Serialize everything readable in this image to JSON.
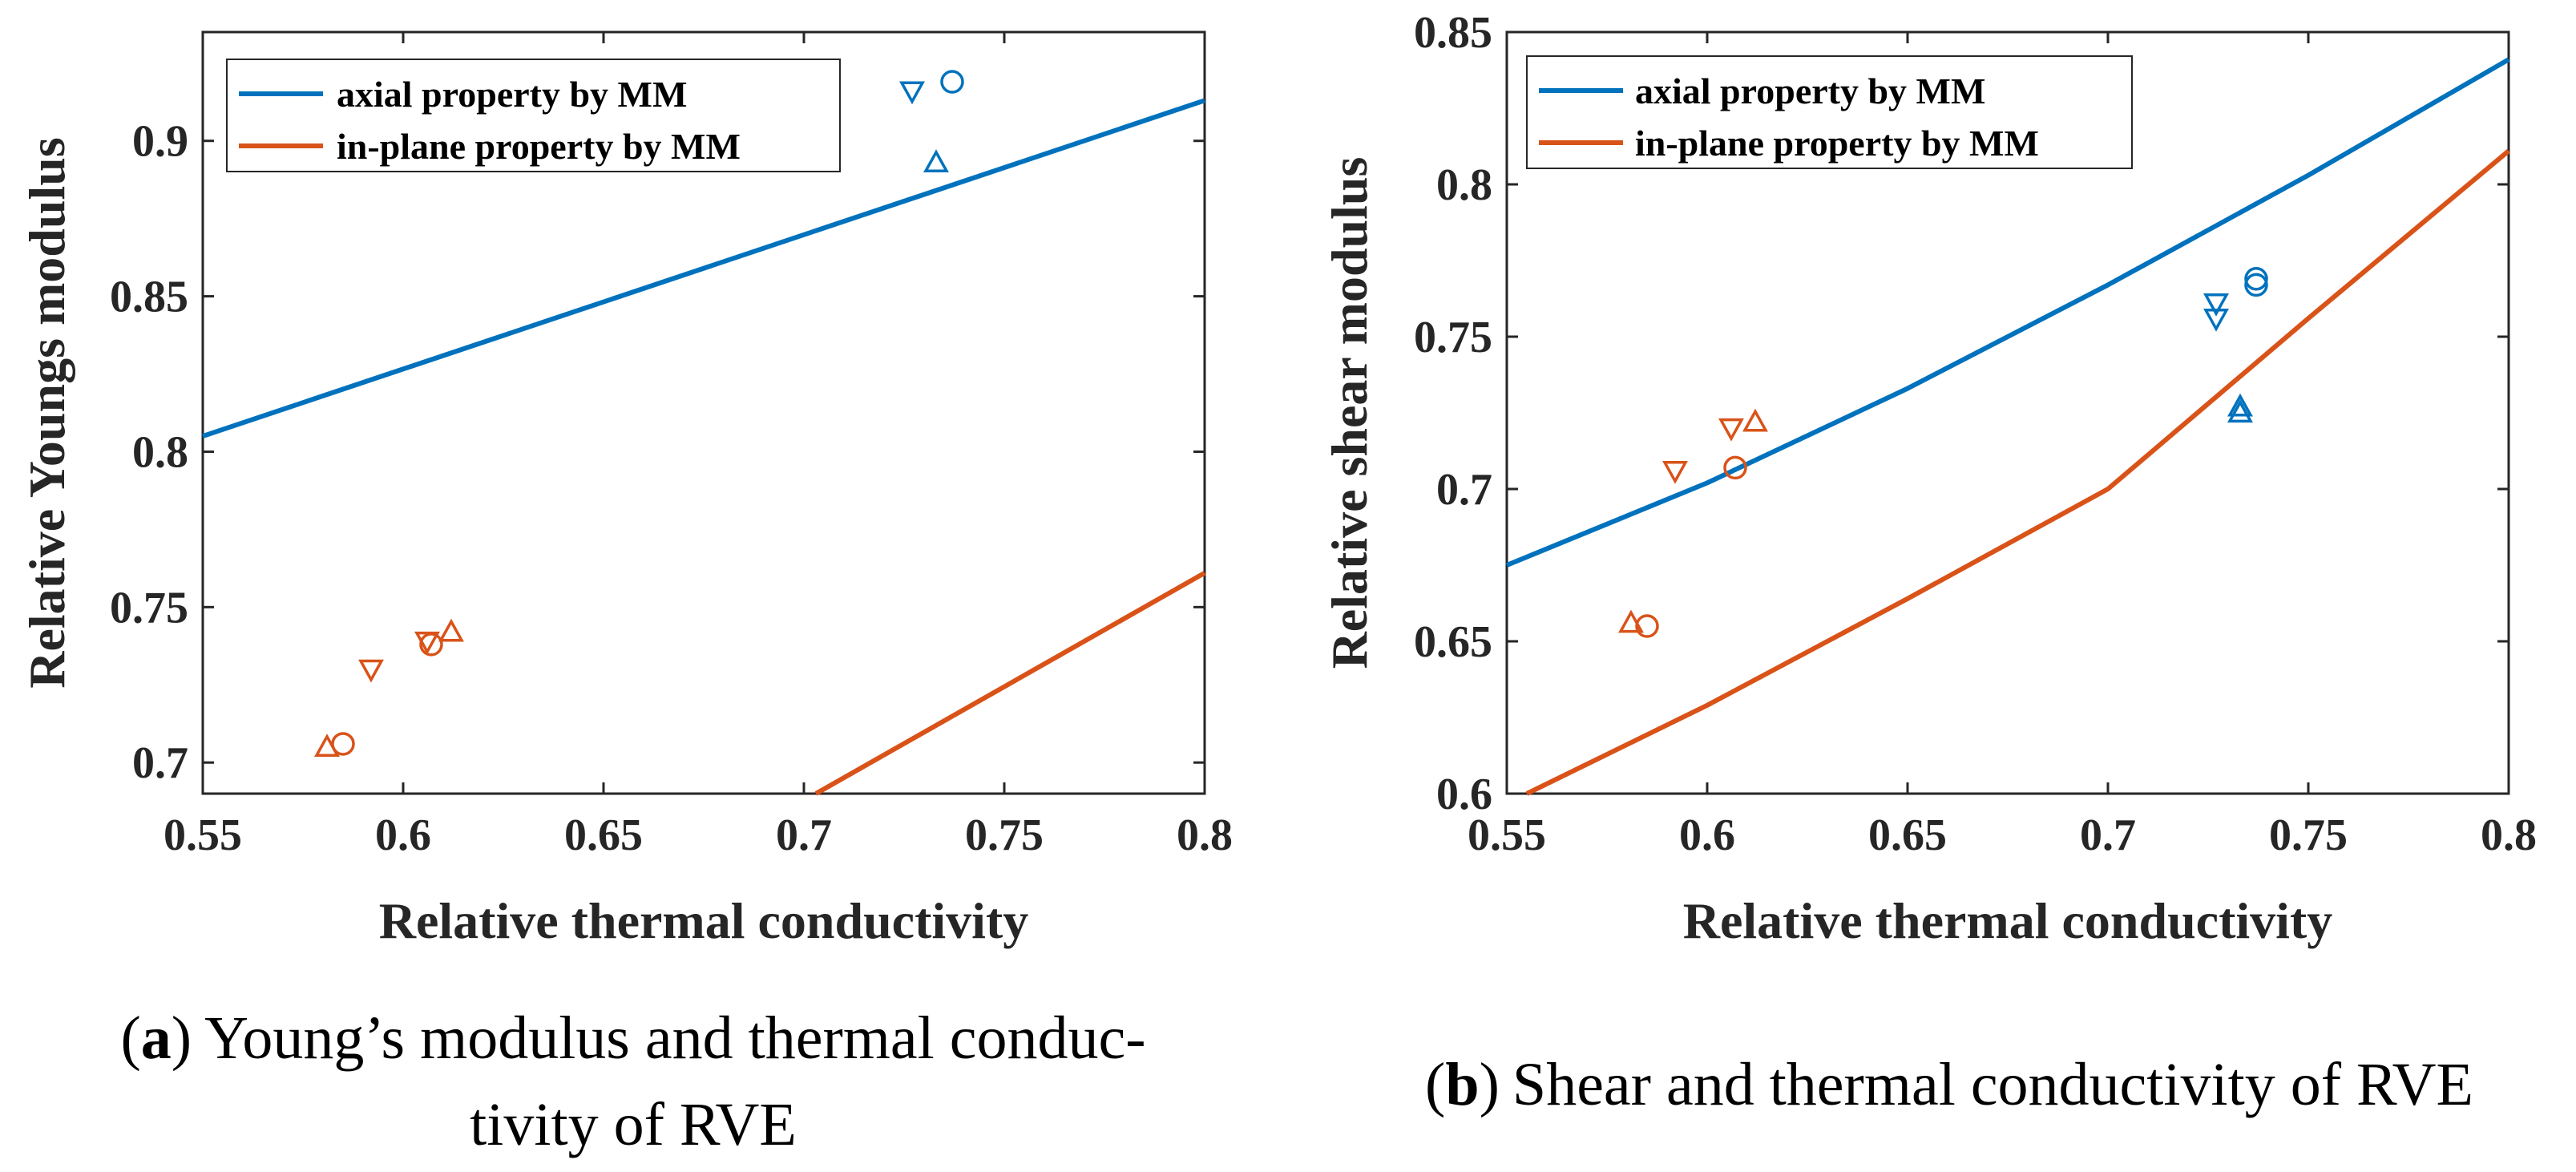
{
  "colors": {
    "axial": "#0072BD",
    "inplane": "#D95319",
    "axis": "#262626",
    "background": "#ffffff"
  },
  "chart_data": [
    {
      "type": "line+scatter",
      "caption": {
        "label": "a",
        "line1": "Young’s modulus and thermal conduc-",
        "line2": "tivity of RVE"
      },
      "xlabel": "Relative thermal conductivity",
      "ylabel": "Relative Youngs modulus",
      "xlim": [
        0.55,
        0.8
      ],
      "ylim": [
        0.69,
        0.935
      ],
      "xticks": [
        0.55,
        0.6,
        0.65,
        0.7,
        0.75,
        0.8
      ],
      "xtick_labels": [
        "0.55",
        "0.6",
        "0.65",
        "0.7",
        "0.75",
        "0.8"
      ],
      "yticks": [
        0.7,
        0.75,
        0.8,
        0.85,
        0.9
      ],
      "ytick_labels": [
        "0.7",
        "0.75",
        "0.8",
        "0.85",
        "0.9"
      ],
      "legend": {
        "position": "top-left",
        "entries": [
          "axial property by MM",
          "in-plane property by MM"
        ]
      },
      "lines": [
        {
          "name": "axial property by MM",
          "color_key": "axial",
          "x": [
            0.55,
            0.8
          ],
          "y": [
            0.805,
            0.913
          ]
        },
        {
          "name": "in-plane property by MM",
          "color_key": "inplane",
          "x": [
            0.703,
            0.8
          ],
          "y": [
            0.69,
            0.761
          ]
        }
      ],
      "markers": [
        {
          "series": "axial",
          "shape": "circle",
          "x": 0.737,
          "y": 0.919
        },
        {
          "series": "axial",
          "shape": "triangle-down",
          "x": 0.727,
          "y": 0.916
        },
        {
          "series": "axial",
          "shape": "triangle-up",
          "x": 0.733,
          "y": 0.893
        },
        {
          "series": "inplane",
          "shape": "triangle-up",
          "x": 0.612,
          "y": 0.742
        },
        {
          "series": "inplane",
          "shape": "triangle-down",
          "x": 0.606,
          "y": 0.739
        },
        {
          "series": "inplane",
          "shape": "circle",
          "x": 0.607,
          "y": 0.738
        },
        {
          "series": "inplane",
          "shape": "triangle-down",
          "x": 0.592,
          "y": 0.73
        },
        {
          "series": "inplane",
          "shape": "triangle-up",
          "x": 0.581,
          "y": 0.705
        },
        {
          "series": "inplane",
          "shape": "circle",
          "x": 0.585,
          "y": 0.706
        }
      ]
    },
    {
      "type": "line+scatter",
      "caption": {
        "label": "b",
        "line1": "Shear and thermal conductivity of RVE",
        "line2": ""
      },
      "xlabel": "Relative thermal conductivity",
      "ylabel": "Relative shear modulus",
      "xlim": [
        0.55,
        0.8
      ],
      "ylim": [
        0.6,
        0.85
      ],
      "xticks": [
        0.55,
        0.6,
        0.65,
        0.7,
        0.75,
        0.8
      ],
      "xtick_labels": [
        "0.55",
        "0.6",
        "0.65",
        "0.7",
        "0.75",
        "0.8"
      ],
      "yticks": [
        0.6,
        0.65,
        0.7,
        0.75,
        0.8,
        0.85
      ],
      "ytick_labels": [
        "0.6",
        "0.65",
        "0.7",
        "0.75",
        "0.8",
        "0.85"
      ],
      "legend": {
        "position": "top-left",
        "entries": [
          "axial property by MM",
          "in-plane property by MM"
        ]
      },
      "lines": [
        {
          "name": "axial property by MM",
          "color_key": "axial",
          "x": [
            0.55,
            0.6,
            0.65,
            0.7,
            0.75,
            0.8
          ],
          "y": [
            0.675,
            0.702,
            0.733,
            0.767,
            0.803,
            0.841
          ]
        },
        {
          "name": "in-plane property by MM",
          "color_key": "inplane",
          "x": [
            0.555,
            0.6,
            0.65,
            0.7,
            0.75,
            0.8
          ],
          "y": [
            0.6,
            0.629,
            0.664,
            0.7,
            0.756,
            0.811
          ]
        }
      ],
      "markers": [
        {
          "series": "axial",
          "shape": "circle",
          "x": 0.737,
          "y": 0.769
        },
        {
          "series": "axial",
          "shape": "circle",
          "x": 0.737,
          "y": 0.767
        },
        {
          "series": "axial",
          "shape": "triangle-down",
          "x": 0.727,
          "y": 0.761
        },
        {
          "series": "axial",
          "shape": "triangle-down",
          "x": 0.727,
          "y": 0.756
        },
        {
          "series": "axial",
          "shape": "triangle-up",
          "x": 0.733,
          "y": 0.727
        },
        {
          "series": "axial",
          "shape": "triangle-up",
          "x": 0.733,
          "y": 0.725
        },
        {
          "series": "inplane",
          "shape": "triangle-up",
          "x": 0.612,
          "y": 0.722
        },
        {
          "series": "inplane",
          "shape": "triangle-down",
          "x": 0.606,
          "y": 0.72
        },
        {
          "series": "inplane",
          "shape": "circle",
          "x": 0.607,
          "y": 0.707
        },
        {
          "series": "inplane",
          "shape": "triangle-down",
          "x": 0.592,
          "y": 0.706
        },
        {
          "series": "inplane",
          "shape": "triangle-up",
          "x": 0.581,
          "y": 0.656
        },
        {
          "series": "inplane",
          "shape": "circle",
          "x": 0.585,
          "y": 0.655
        }
      ]
    }
  ]
}
